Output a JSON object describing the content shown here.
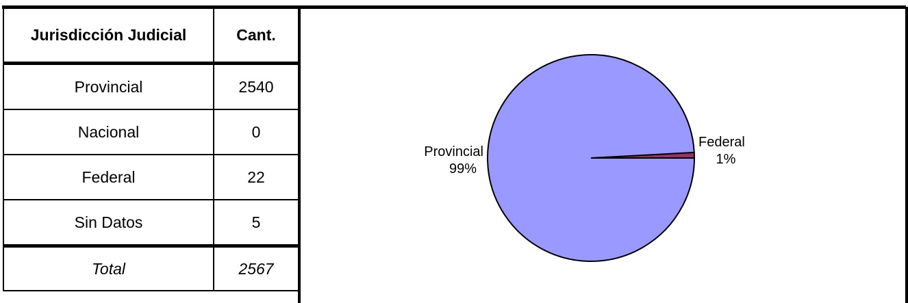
{
  "table": {
    "header": {
      "col1": "Jurisdicción Judicial",
      "col2": "Cant."
    },
    "rows": [
      {
        "label": "Provincial",
        "value": "2540"
      },
      {
        "label": "Nacional",
        "value": "0"
      },
      {
        "label": "Federal",
        "value": "22"
      },
      {
        "label": "Sin Datos",
        "value": "5"
      }
    ],
    "total": {
      "label": "Total",
      "value": "2567"
    }
  },
  "chart_data": {
    "type": "pie",
    "slices": [
      {
        "name": "Provincial",
        "value": 2540,
        "percent_label": "99%",
        "color": "#9999ff"
      },
      {
        "name": "Federal",
        "value": 22,
        "percent_label": "1%",
        "color": "#993366"
      }
    ],
    "legend": "none",
    "title": ""
  }
}
